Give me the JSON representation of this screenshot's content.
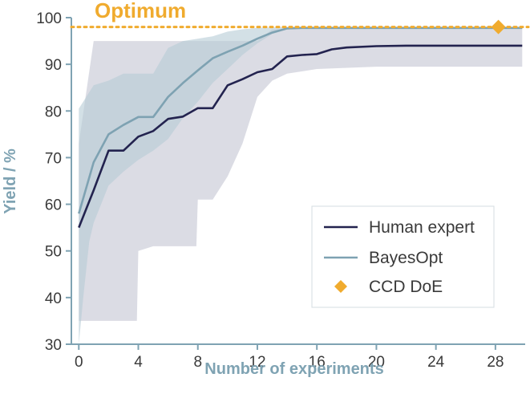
{
  "chart_data": {
    "type": "line",
    "title": "",
    "xlabel": "Number of experiments",
    "ylabel": "Yield / %",
    "xlim": [
      -0.5,
      30
    ],
    "ylim": [
      30,
      100
    ],
    "xticks": [
      0,
      4,
      8,
      12,
      16,
      20,
      24,
      28
    ],
    "yticks": [
      30,
      40,
      50,
      60,
      70,
      80,
      90,
      100
    ],
    "grid": false,
    "legend_position": "bottom-right",
    "annotation": {
      "label": "Optimum",
      "y": 98,
      "color": "#f0ab2e"
    },
    "series": [
      {
        "name": "Human expert",
        "color": "#23234f",
        "x": [
          0,
          1,
          2,
          3,
          4,
          5,
          6,
          7,
          8,
          9,
          10,
          11,
          12,
          13,
          14,
          15,
          16,
          17,
          18,
          20,
          22,
          24,
          26,
          28,
          29.8
        ],
        "y": [
          55,
          63,
          71.5,
          71.5,
          74.5,
          75.7,
          78.3,
          78.8,
          80.6,
          80.6,
          85.5,
          86.8,
          88.3,
          89,
          91.7,
          92,
          92.2,
          93.2,
          93.6,
          93.9,
          94,
          94,
          94,
          94,
          94
        ],
        "band_color": "#c7c9d6",
        "band_upper": [
          [
            0,
            73
          ],
          [
            1,
            95
          ],
          [
            2,
            95
          ],
          [
            3,
            95
          ],
          [
            4,
            95
          ],
          [
            6,
            95
          ],
          [
            8,
            95
          ],
          [
            10,
            95
          ],
          [
            12,
            95
          ],
          [
            13,
            97.5
          ],
          [
            14,
            97.5
          ],
          [
            16,
            97.5
          ],
          [
            20,
            97.5
          ],
          [
            24,
            97.5
          ],
          [
            28,
            97.5
          ],
          [
            29.8,
            97.5
          ]
        ],
        "band_lower": [
          [
            0,
            35
          ],
          [
            1,
            35
          ],
          [
            2,
            35
          ],
          [
            3,
            35
          ],
          [
            3.9,
            35
          ],
          [
            4,
            50
          ],
          [
            5,
            51
          ],
          [
            6,
            51
          ],
          [
            7,
            51
          ],
          [
            7.9,
            51
          ],
          [
            8,
            61
          ],
          [
            9,
            61
          ],
          [
            10,
            66
          ],
          [
            11,
            73
          ],
          [
            12,
            83
          ],
          [
            13,
            86.5
          ],
          [
            14,
            88
          ],
          [
            16,
            89
          ],
          [
            20,
            89.5
          ],
          [
            24,
            89.5
          ],
          [
            28,
            89.5
          ],
          [
            29.8,
            89.5
          ]
        ]
      },
      {
        "name": "BayesOpt",
        "color": "#7ea2b2",
        "x": [
          0,
          1,
          2,
          3,
          4,
          5,
          6,
          7,
          8,
          9,
          10,
          11,
          12,
          13,
          14,
          15,
          16,
          18,
          20,
          22,
          24,
          26,
          28,
          29.8
        ],
        "y": [
          58,
          69,
          75,
          77,
          78.7,
          78.7,
          83,
          86,
          88.7,
          91.3,
          92.7,
          94,
          95.5,
          96.8,
          97.7,
          97.8,
          97.8,
          97.8,
          97.8,
          97.8,
          97.8,
          97.8,
          97.8,
          97.8
        ],
        "band_color": "#b5cbd5",
        "band_upper": [
          [
            0,
            80.5
          ],
          [
            0.5,
            83
          ],
          [
            1,
            85.5
          ],
          [
            2,
            86.5
          ],
          [
            3,
            88
          ],
          [
            4,
            88
          ],
          [
            5,
            88
          ],
          [
            6,
            93.5
          ],
          [
            7,
            95
          ],
          [
            8,
            95.5
          ],
          [
            9,
            96
          ],
          [
            10,
            97
          ],
          [
            11,
            97.5
          ],
          [
            12,
            97.8
          ],
          [
            14,
            98
          ],
          [
            16,
            98
          ],
          [
            20,
            98
          ],
          [
            24,
            98
          ],
          [
            28,
            98
          ],
          [
            29.8,
            98
          ]
        ],
        "band_lower": [
          [
            0,
            30
          ],
          [
            0.3,
            40
          ],
          [
            0.7,
            52
          ],
          [
            1,
            56
          ],
          [
            2,
            64
          ],
          [
            3,
            67
          ],
          [
            4,
            69.5
          ],
          [
            5,
            71.5
          ],
          [
            6,
            74
          ],
          [
            7,
            78.5
          ],
          [
            8,
            82
          ],
          [
            9,
            86
          ],
          [
            10,
            89
          ],
          [
            11,
            92
          ],
          [
            12,
            94.5
          ],
          [
            13,
            96.5
          ],
          [
            14,
            97.5
          ],
          [
            16,
            97.5
          ],
          [
            20,
            97.5
          ],
          [
            24,
            97.5
          ],
          [
            28,
            97.5
          ],
          [
            29.8,
            97.5
          ]
        ]
      }
    ],
    "points": [
      {
        "name": "CCD DoE",
        "x": 28.2,
        "y": 98,
        "color": "#f0ab2e",
        "marker": "diamond"
      }
    ]
  }
}
